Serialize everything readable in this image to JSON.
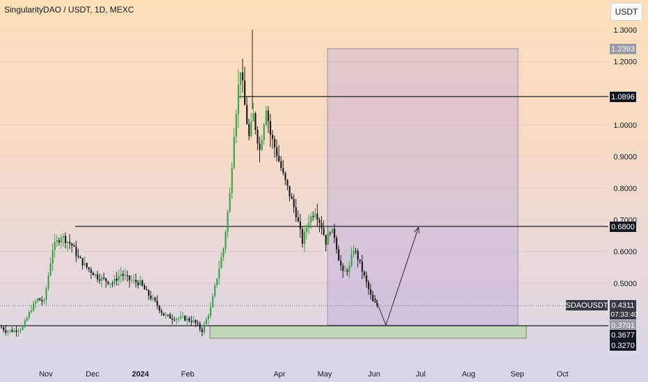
{
  "header": {
    "title": "SingularityDAO / USDT, 1D, MEXC",
    "unit_button": "USDT"
  },
  "colors": {
    "up": "#26a69a",
    "candle_up": "#3fa34d",
    "candle_down": "#1e1e1e",
    "box": "#b39ddb",
    "zone": "#b5d6a7"
  },
  "chart_data": {
    "type": "candlestick",
    "symbol": "SDAOUSDT",
    "x_ticks": [
      "Nov",
      "Dec",
      "2024",
      "Feb",
      "Apr",
      "May",
      "Jun",
      "Jul",
      "Aug",
      "Sep",
      "Oct"
    ],
    "y_ticks": [
      "1.3000",
      "1.2000",
      "1.0000",
      "0.9000",
      "0.8000",
      "0.7000",
      "0.6000",
      "0.5000"
    ],
    "ylim": [
      0.31,
      1.33
    ],
    "price_labels": {
      "target": "1.2393",
      "resistance_high": "1.0896",
      "resistance_mid": "0.6800",
      "current_symbol": "SDAOUSDT",
      "current_price": "0.4311",
      "countdown": "07:33:40",
      "support_top": "0.3701",
      "support": "0.3677",
      "support_low": "0.3270"
    },
    "levels": [
      1.0896,
      0.68,
      0.3677
    ],
    "projection_box": {
      "from": "May",
      "to": "Sep",
      "top": 1.2393,
      "bottom": 0.3701
    },
    "demand_zone": {
      "from": "May",
      "to": "Sep",
      "top": 0.3701,
      "bottom": 0.327
    },
    "projection_path": [
      [
        "Jun",
        0.4311
      ],
      [
        "Jun",
        0.3701
      ],
      [
        "Jul",
        0.68
      ]
    ],
    "price_path": [
      [
        0,
        0.36
      ],
      [
        2,
        0.35
      ],
      [
        6,
        0.35
      ],
      [
        10,
        0.36
      ],
      [
        14,
        0.42
      ],
      [
        17,
        0.45
      ],
      [
        20,
        0.44
      ],
      [
        24,
        0.61
      ],
      [
        28,
        0.65
      ],
      [
        33,
        0.62
      ],
      [
        36,
        0.58
      ],
      [
        40,
        0.55
      ],
      [
        45,
        0.52
      ],
      [
        52,
        0.5
      ],
      [
        56,
        0.53
      ],
      [
        60,
        0.51
      ],
      [
        65,
        0.5
      ],
      [
        68,
        0.47
      ],
      [
        72,
        0.44
      ],
      [
        76,
        0.4
      ],
      [
        80,
        0.39
      ],
      [
        85,
        0.39
      ],
      [
        90,
        0.38
      ],
      [
        94,
        0.35
      ],
      [
        98,
        0.42
      ],
      [
        101,
        0.52
      ],
      [
        104,
        0.61
      ],
      [
        107,
        0.78
      ],
      [
        109,
        0.98
      ],
      [
        111,
        1.12
      ],
      [
        112,
        1.18
      ],
      [
        114,
        1.06
      ],
      [
        116,
        0.96
      ],
      [
        118,
        1.03
      ],
      [
        121,
        0.92
      ],
      [
        124,
        1.06
      ],
      [
        126,
        0.97
      ],
      [
        129,
        0.91
      ],
      [
        132,
        0.84
      ],
      [
        135,
        0.78
      ],
      [
        138,
        0.72
      ],
      [
        141,
        0.63
      ],
      [
        144,
        0.7
      ],
      [
        147,
        0.73
      ],
      [
        150,
        0.68
      ],
      [
        152,
        0.63
      ],
      [
        154,
        0.67
      ],
      [
        156,
        0.65
      ],
      [
        158,
        0.58
      ],
      [
        160,
        0.53
      ],
      [
        163,
        0.55
      ],
      [
        165,
        0.61
      ],
      [
        167,
        0.58
      ],
      [
        169,
        0.54
      ],
      [
        172,
        0.48
      ],
      [
        174,
        0.44
      ],
      [
        176,
        0.43
      ]
    ]
  }
}
